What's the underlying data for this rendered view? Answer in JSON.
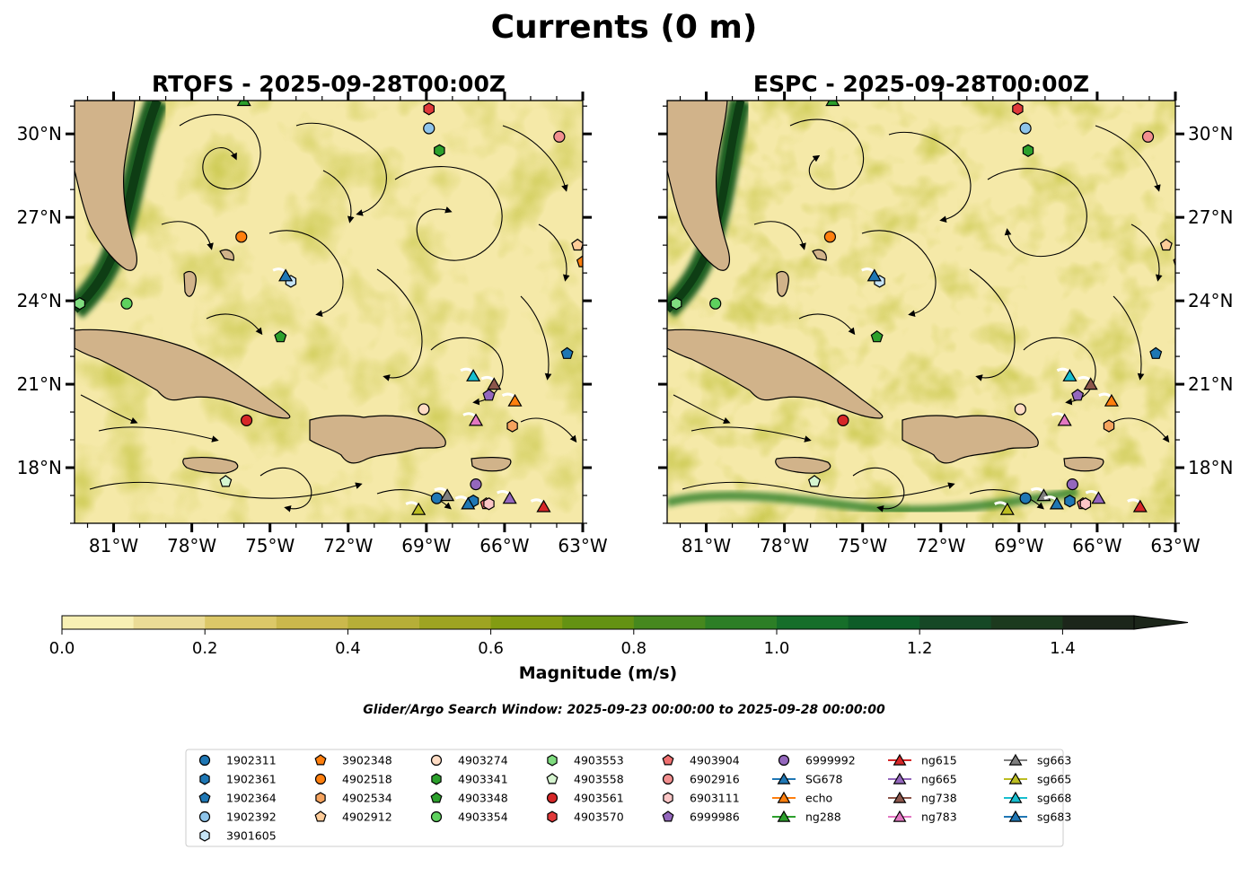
{
  "figure": {
    "suptitle": "Currents (0 m)",
    "note": "Glider/Argo Search Window: 2025-09-23 00:00:00 to 2025-09-28 00:00:00"
  },
  "chart_data": {
    "type": "map",
    "xlim": [
      -82.5,
      -63.0
    ],
    "ylim": [
      16.0,
      31.2
    ],
    "panels": [
      {
        "title": "RTOFS - 2025-09-28T00:00Z",
        "lat_labels_side": "left",
        "xticks": [
          {
            "v": -81,
            "label": "81°W"
          },
          {
            "v": -78,
            "label": "78°W"
          },
          {
            "v": -75,
            "label": "75°W"
          },
          {
            "v": -72,
            "label": "72°W"
          },
          {
            "v": -69,
            "label": "69°W"
          },
          {
            "v": -66,
            "label": "66°W"
          },
          {
            "v": -63,
            "label": "63°W"
          }
        ],
        "yticks": [
          {
            "v": 18,
            "label": "18°N"
          },
          {
            "v": 21,
            "label": "21°N"
          },
          {
            "v": 24,
            "label": "24°N"
          },
          {
            "v": 27,
            "label": "27°N"
          },
          {
            "v": 30,
            "label": "30°N"
          }
        ]
      },
      {
        "title": "ESPC - 2025-09-28T00:00Z",
        "lat_labels_side": "right",
        "xticks": [
          {
            "v": -81,
            "label": "81°W"
          },
          {
            "v": -78,
            "label": "78°W"
          },
          {
            "v": -75,
            "label": "75°W"
          },
          {
            "v": -72,
            "label": "72°W"
          },
          {
            "v": -69,
            "label": "69°W"
          },
          {
            "v": -66,
            "label": "66°W"
          },
          {
            "v": -63,
            "label": "63°W"
          }
        ],
        "yticks": [
          {
            "v": 18,
            "label": "18°N"
          },
          {
            "v": 21,
            "label": "21°N"
          },
          {
            "v": 24,
            "label": "24°N"
          },
          {
            "v": 27,
            "label": "27°N"
          },
          {
            "v": 30,
            "label": "30°N"
          }
        ]
      }
    ],
    "colorbar": {
      "label": "Magnitude (m/s)",
      "range": [
        0.0,
        1.5
      ],
      "extend": "max",
      "ticks": [
        {
          "v": 0.0,
          "label": "0.0"
        },
        {
          "v": 0.2,
          "label": "0.2"
        },
        {
          "v": 0.4,
          "label": "0.4"
        },
        {
          "v": 0.6,
          "label": "0.6"
        },
        {
          "v": 0.8,
          "label": "0.8"
        },
        {
          "v": 1.0,
          "label": "1.0"
        },
        {
          "v": 1.2,
          "label": "1.2"
        },
        {
          "v": 1.4,
          "label": "1.4"
        }
      ],
      "colors": [
        "#f8f0b4",
        "#ebdc96",
        "#dcc868",
        "#cbb84c",
        "#b6ae38",
        "#9ea422",
        "#839c12",
        "#649212",
        "#46881e",
        "#2c7e26",
        "#166e2a",
        "#0e5c28",
        "#164826",
        "#1c3a1e",
        "#1c261a"
      ]
    },
    "series": [
      {
        "name": "1902311",
        "marker": "circle",
        "color": "#1f77b4",
        "lon": -68.6,
        "lat": 16.9
      },
      {
        "name": "1902361",
        "marker": "hexagon",
        "color": "#1f77b4",
        "lon": -67.2,
        "lat": 16.8
      },
      {
        "name": "1902364",
        "marker": "pentagon",
        "color": "#1f77b4",
        "lon": -63.6,
        "lat": 22.1
      },
      {
        "name": "1902392",
        "marker": "circle",
        "color": "#8ec4ea",
        "lon": -68.9,
        "lat": 30.2
      },
      {
        "name": "3901605",
        "marker": "hexagon",
        "color": "#c6e4f5",
        "lon": -74.2,
        "lat": 24.7
      },
      {
        "name": "3902348",
        "marker": "pentagon",
        "color": "#ff7f0e",
        "lon": -63.0,
        "lat": 25.4
      },
      {
        "name": "4902518",
        "marker": "circle",
        "color": "#ff7f0e",
        "lon": -76.1,
        "lat": 26.3
      },
      {
        "name": "4902534",
        "marker": "hexagon",
        "color": "#f5a35e",
        "lon": -65.7,
        "lat": 19.5
      },
      {
        "name": "4902912",
        "marker": "pentagon",
        "color": "#ffcc99",
        "lon": -63.2,
        "lat": 26.0
      },
      {
        "name": "4903274",
        "marker": "circle",
        "color": "#ffdcc4",
        "lon": -69.1,
        "lat": 20.1
      },
      {
        "name": "4903341",
        "marker": "hexagon",
        "color": "#2ca02c",
        "lon": -68.5,
        "lat": 29.4
      },
      {
        "name": "4903348",
        "marker": "pentagon",
        "color": "#2ca02c",
        "lon": -74.6,
        "lat": 22.7
      },
      {
        "name": "4903354",
        "marker": "circle",
        "color": "#5ed15e",
        "lon": -80.5,
        "lat": 23.9
      },
      {
        "name": "4903553",
        "marker": "hexagon",
        "color": "#7fdc7f",
        "lon": -82.3,
        "lat": 23.9
      },
      {
        "name": "4903558",
        "marker": "pentagon",
        "color": "#d6f5d0",
        "lon": -76.7,
        "lat": 17.5
      },
      {
        "name": "4903561",
        "marker": "circle",
        "color": "#d62728",
        "lon": -75.9,
        "lat": 19.7
      },
      {
        "name": "4903570",
        "marker": "hexagon",
        "color": "#e0393a",
        "lon": -68.9,
        "lat": 30.9
      },
      {
        "name": "4903904",
        "marker": "pentagon",
        "color": "#ef7070",
        "lon": -66.7,
        "lat": 16.7
      },
      {
        "name": "6902916",
        "marker": "circle",
        "color": "#f28f8f",
        "lon": -63.9,
        "lat": 29.9
      },
      {
        "name": "6903111",
        "marker": "hexagon",
        "color": "#fbc6c6",
        "lon": -66.6,
        "lat": 16.7
      },
      {
        "name": "6999986",
        "marker": "pentagon",
        "color": "#9467bd",
        "lon": -66.6,
        "lat": 20.6
      },
      {
        "name": "6999992",
        "marker": "circle",
        "color": "#9467bd",
        "lon": -67.1,
        "lat": 17.4
      },
      {
        "name": "SG678",
        "marker": "triangle",
        "color": "#1f77b4",
        "lon": -74.4,
        "lat": 24.9
      },
      {
        "name": "echo",
        "marker": "triangle",
        "color": "#ff7f0e",
        "lon": -65.6,
        "lat": 20.4
      },
      {
        "name": "ng288",
        "marker": "triangle",
        "color": "#2ca02c",
        "lon": -76.0,
        "lat": 31.2
      },
      {
        "name": "ng615",
        "marker": "triangle",
        "color": "#d62728",
        "lon": -64.5,
        "lat": 16.6
      },
      {
        "name": "ng665",
        "marker": "triangle",
        "color": "#9467bd",
        "lon": -65.8,
        "lat": 16.9
      },
      {
        "name": "ng738",
        "marker": "triangle",
        "color": "#8c564b",
        "lon": -66.4,
        "lat": 21.0
      },
      {
        "name": "ng783",
        "marker": "triangle",
        "color": "#e377c2",
        "lon": -67.1,
        "lat": 19.7
      },
      {
        "name": "sg663",
        "marker": "triangle",
        "color": "#7f7f7f",
        "lon": -68.2,
        "lat": 17.0
      },
      {
        "name": "sg665",
        "marker": "triangle",
        "color": "#bcbd22",
        "lon": -69.3,
        "lat": 16.5
      },
      {
        "name": "sg668",
        "marker": "triangle",
        "color": "#17becf",
        "lon": -67.2,
        "lat": 21.3
      },
      {
        "name": "sg683",
        "marker": "triangle",
        "color": "#1f77b4",
        "lon": -67.4,
        "lat": 16.7
      }
    ]
  },
  "legend": {
    "columns": [
      [
        "1902311",
        "1902361",
        "1902364",
        "1902392",
        "3901605"
      ],
      [
        "3902348",
        "4902518",
        "4902534",
        "4902912"
      ],
      [
        "4903274",
        "4903341",
        "4903348",
        "4903354"
      ],
      [
        "4903553",
        "4903558",
        "4903561",
        "4903570"
      ],
      [
        "4903904",
        "6902916",
        "6903111",
        "6999986"
      ],
      [
        "6999992",
        "SG678",
        "echo",
        "ng288"
      ],
      [
        "ng615",
        "ng665",
        "ng738",
        "ng783"
      ],
      [
        "sg663",
        "sg665",
        "sg668",
        "sg683"
      ]
    ]
  }
}
